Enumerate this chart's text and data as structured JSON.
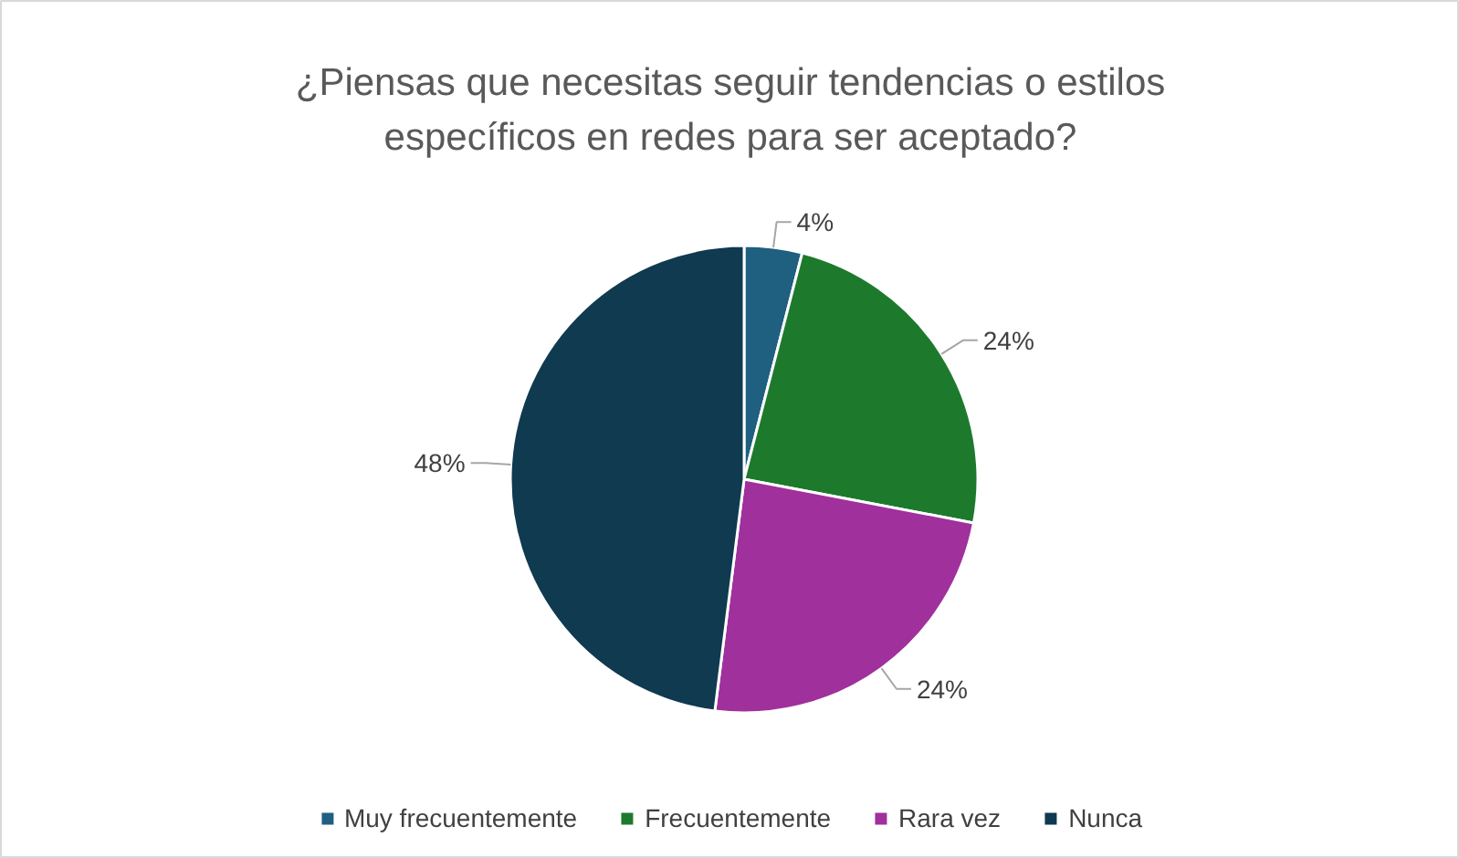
{
  "chart_data": {
    "type": "pie",
    "title": "¿Piensas que necesitas seguir tendencias o estilos específicos en redes para ser aceptado?",
    "categories": [
      "Muy frecuentemente",
      "Frecuentemente",
      "Rara vez",
      "Nunca"
    ],
    "values": [
      4,
      24,
      24,
      48
    ],
    "colors": [
      "#1f5f80",
      "#1d7a2c",
      "#a0309c",
      "#0f3a50"
    ],
    "value_labels": [
      "4%",
      "24%",
      "24%",
      "48%"
    ],
    "legend": "bottom"
  }
}
